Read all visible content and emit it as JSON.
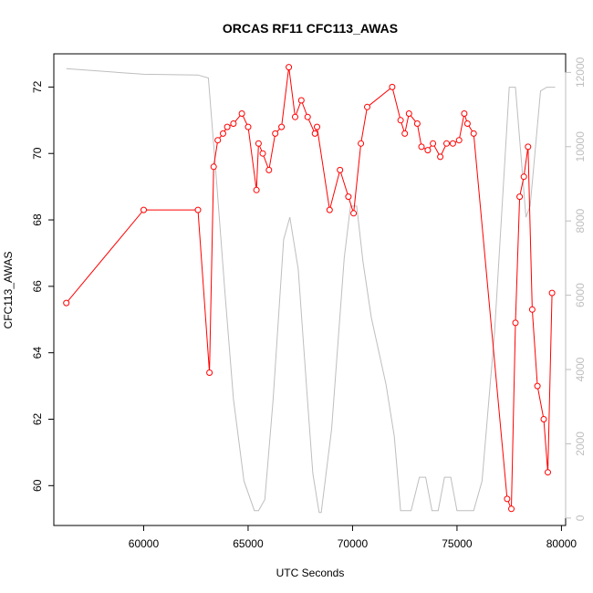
{
  "chart_data": {
    "type": "line",
    "title": "ORCAS RF11 CFC113_AWAS",
    "xlabel": "UTC Seconds",
    "ylabel": "CFC113_AWAS",
    "y2label": "",
    "xlim": [
      55700,
      80200
    ],
    "ylim": [
      58.8,
      73.0
    ],
    "y2lim": [
      -200,
      12500
    ],
    "x_ticks": [
      60000,
      65000,
      70000,
      75000,
      80000
    ],
    "y_ticks": [
      60,
      62,
      64,
      66,
      68,
      70,
      72
    ],
    "y2_ticks": [
      0,
      2000,
      4000,
      6000,
      8000,
      10000,
      12000
    ],
    "grid": false,
    "colors": {
      "primary": "#ff0000",
      "secondary": "#bebebe",
      "axes": "#000000"
    },
    "series": [
      {
        "axis": "left",
        "style": "line+points",
        "color": "#ff0000",
        "points": [
          [
            56300,
            65.5
          ],
          [
            60000,
            68.3
          ],
          [
            62600,
            68.3
          ],
          [
            63150,
            63.4
          ],
          [
            63350,
            69.6
          ],
          [
            63550,
            70.4
          ],
          [
            63800,
            70.6
          ],
          [
            64000,
            70.8
          ],
          [
            64300,
            70.9
          ],
          [
            64700,
            71.2
          ],
          [
            65000,
            70.8
          ],
          [
            65400,
            68.9
          ],
          [
            65500,
            70.3
          ],
          [
            65700,
            70.0
          ],
          [
            66000,
            69.5
          ],
          [
            66300,
            70.6
          ],
          [
            66600,
            70.8
          ],
          [
            66950,
            72.6
          ],
          [
            67250,
            71.1
          ],
          [
            67550,
            71.6
          ],
          [
            67850,
            71.1
          ],
          [
            68200,
            70.6
          ],
          [
            68300,
            70.8
          ],
          [
            68900,
            68.3
          ],
          [
            69400,
            69.5
          ],
          [
            69800,
            68.7
          ],
          [
            70050,
            68.2
          ],
          [
            70400,
            70.3
          ],
          [
            70700,
            71.4
          ],
          [
            71900,
            72.0
          ],
          [
            72300,
            71.0
          ],
          [
            72500,
            70.6
          ],
          [
            72700,
            71.2
          ],
          [
            73100,
            70.9
          ],
          [
            73300,
            70.2
          ],
          [
            73600,
            70.1
          ],
          [
            73850,
            70.3
          ],
          [
            74200,
            69.9
          ],
          [
            74500,
            70.3
          ],
          [
            74800,
            70.3
          ],
          [
            75100,
            70.4
          ],
          [
            75350,
            71.2
          ],
          [
            75500,
            70.9
          ],
          [
            75800,
            70.6
          ],
          [
            77400,
            59.6
          ],
          [
            77600,
            59.3
          ],
          [
            77800,
            64.9
          ],
          [
            78000,
            68.7
          ],
          [
            78200,
            69.3
          ],
          [
            78400,
            70.2
          ],
          [
            78600,
            65.3
          ],
          [
            78850,
            63.0
          ],
          [
            79150,
            62.0
          ],
          [
            79350,
            60.4
          ],
          [
            79550,
            65.8
          ]
        ]
      },
      {
        "axis": "right",
        "style": "line",
        "color": "#bebebe",
        "points": [
          [
            56300,
            12100
          ],
          [
            60000,
            11950
          ],
          [
            62600,
            11930
          ],
          [
            63100,
            11850
          ],
          [
            63500,
            9000
          ],
          [
            63900,
            6000
          ],
          [
            64300,
            3200
          ],
          [
            64800,
            1000
          ],
          [
            65300,
            200
          ],
          [
            65500,
            200
          ],
          [
            65800,
            500
          ],
          [
            66200,
            3200
          ],
          [
            66700,
            7500
          ],
          [
            67000,
            8100
          ],
          [
            67400,
            6700
          ],
          [
            67800,
            3500
          ],
          [
            68100,
            1200
          ],
          [
            68400,
            150
          ],
          [
            68500,
            150
          ],
          [
            69000,
            2400
          ],
          [
            69600,
            7000
          ],
          [
            69900,
            8400
          ],
          [
            70200,
            8400
          ],
          [
            70500,
            6900
          ],
          [
            70900,
            5400
          ],
          [
            71600,
            3600
          ],
          [
            72000,
            2200
          ],
          [
            72300,
            200
          ],
          [
            72800,
            200
          ],
          [
            73200,
            1100
          ],
          [
            73500,
            1100
          ],
          [
            73800,
            200
          ],
          [
            74100,
            200
          ],
          [
            74400,
            1100
          ],
          [
            74700,
            1100
          ],
          [
            75000,
            200
          ],
          [
            75800,
            200
          ],
          [
            76200,
            1000
          ],
          [
            76800,
            5000
          ],
          [
            77500,
            11600
          ],
          [
            77800,
            11600
          ],
          [
            78100,
            9500
          ],
          [
            78300,
            8100
          ],
          [
            78500,
            8400
          ],
          [
            79000,
            11500
          ],
          [
            79300,
            11600
          ],
          [
            79700,
            11600
          ]
        ]
      }
    ]
  }
}
